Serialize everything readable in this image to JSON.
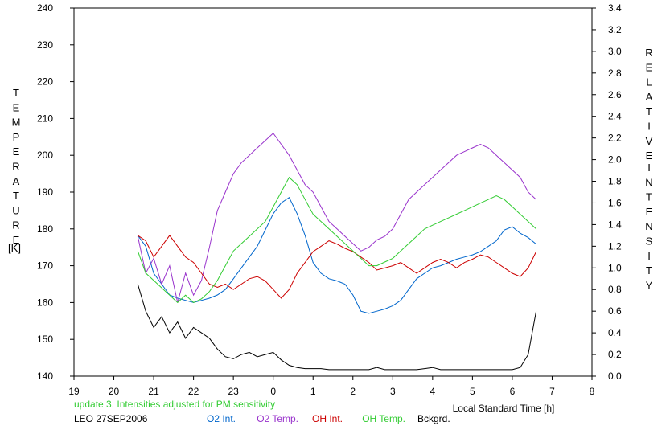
{
  "chart_data": {
    "type": "line",
    "left_axis": {
      "label_letters": [
        "T",
        "E",
        "M",
        "P",
        "E",
        "R",
        "A",
        "T",
        "U",
        "R",
        "E"
      ],
      "unit": "[K]",
      "range": [
        140,
        240
      ],
      "ticks": [
        "140",
        "150",
        "160",
        "170",
        "180",
        "190",
        "200",
        "210",
        "220",
        "230",
        "240"
      ]
    },
    "right_axis": {
      "label_word1": [
        "R",
        "E",
        "L",
        "A",
        "T",
        "I",
        "V",
        "E"
      ],
      "label_word2": [
        "I",
        "N",
        "T",
        "E",
        "N",
        "S",
        "I",
        "T",
        "Y"
      ],
      "range": [
        0.0,
        3.4
      ],
      "ticks": [
        "0.0",
        "0.2",
        "0.4",
        "0.6",
        "0.8",
        "1.0",
        "1.2",
        "1.4",
        "1.6",
        "1.8",
        "2.0",
        "2.2",
        "2.4",
        "2.6",
        "2.8",
        "3.0",
        "3.2",
        "3.4"
      ]
    },
    "x_axis": {
      "label": "Local Standard Time [h]",
      "range": [
        19,
        32
      ],
      "ticks": [
        "19",
        "20",
        "21",
        "22",
        "23",
        "0",
        "1",
        "2",
        "3",
        "4",
        "5",
        "6",
        "7",
        "8"
      ]
    },
    "grid": false,
    "note": "update 3. Intensities adjusted for PM sensitivity",
    "station": "LEO 27SEP2006",
    "series": [
      {
        "name": "O2 Int.",
        "axis": "right",
        "color": "#0066cc",
        "x": [
          20.6,
          20.8,
          21.0,
          21.2,
          21.4,
          21.6,
          21.8,
          22.0,
          22.2,
          22.4,
          22.6,
          22.8,
          23.0,
          23.2,
          23.4,
          23.6,
          23.8,
          24.0,
          24.2,
          24.4,
          24.6,
          24.8,
          25.0,
          25.2,
          25.4,
          25.6,
          25.8,
          26.0,
          26.2,
          26.4,
          26.6,
          26.8,
          27.0,
          27.2,
          27.4,
          27.6,
          27.8,
          28.0,
          28.2,
          28.4,
          28.6,
          28.8,
          29.0,
          29.2,
          29.4,
          29.6,
          29.8,
          30.0,
          30.2,
          30.4,
          30.6
        ],
        "values": [
          1.3,
          1.2,
          0.95,
          0.85,
          0.75,
          0.72,
          0.7,
          0.68,
          0.7,
          0.72,
          0.75,
          0.8,
          0.9,
          1.0,
          1.1,
          1.2,
          1.35,
          1.5,
          1.6,
          1.65,
          1.5,
          1.3,
          1.05,
          0.95,
          0.9,
          0.88,
          0.85,
          0.75,
          0.6,
          0.58,
          0.6,
          0.62,
          0.65,
          0.7,
          0.8,
          0.9,
          0.95,
          1.0,
          1.02,
          1.05,
          1.08,
          1.1,
          1.12,
          1.15,
          1.2,
          1.25,
          1.35,
          1.38,
          1.32,
          1.28,
          1.22
        ]
      },
      {
        "name": "O2 Temp.",
        "axis": "left",
        "color": "#9933cc",
        "x": [
          20.6,
          20.8,
          21.0,
          21.2,
          21.4,
          21.6,
          21.8,
          22.0,
          22.2,
          22.4,
          22.6,
          22.8,
          23.0,
          23.2,
          23.4,
          23.6,
          23.8,
          24.0,
          24.2,
          24.4,
          24.6,
          24.8,
          25.0,
          25.2,
          25.4,
          25.6,
          25.8,
          26.0,
          26.2,
          26.4,
          26.6,
          26.8,
          27.0,
          27.2,
          27.4,
          27.6,
          27.8,
          28.0,
          28.2,
          28.4,
          28.6,
          28.8,
          29.0,
          29.2,
          29.4,
          29.6,
          29.8,
          30.0,
          30.2,
          30.4,
          30.6
        ],
        "values": [
          178,
          168,
          172,
          165,
          170,
          160,
          168,
          162,
          166,
          175,
          185,
          190,
          195,
          198,
          200,
          202,
          204,
          206,
          203,
          200,
          196,
          192,
          190,
          186,
          182,
          180,
          178,
          176,
          174,
          175,
          177,
          178,
          180,
          184,
          188,
          190,
          192,
          194,
          196,
          198,
          200,
          201,
          202,
          203,
          202,
          200,
          198,
          196,
          194,
          190,
          188
        ]
      },
      {
        "name": "OH Int.",
        "axis": "right",
        "color": "#cc0000",
        "x": [
          20.6,
          20.8,
          21.0,
          21.2,
          21.4,
          21.6,
          21.8,
          22.0,
          22.2,
          22.4,
          22.6,
          22.8,
          23.0,
          23.2,
          23.4,
          23.6,
          23.8,
          24.0,
          24.2,
          24.4,
          24.6,
          24.8,
          25.0,
          25.2,
          25.4,
          25.6,
          25.8,
          26.0,
          26.2,
          26.4,
          26.6,
          26.8,
          27.0,
          27.2,
          27.4,
          27.6,
          27.8,
          28.0,
          28.2,
          28.4,
          28.6,
          28.8,
          29.0,
          29.2,
          29.4,
          29.6,
          29.8,
          30.0,
          30.2,
          30.4,
          30.6
        ],
        "values": [
          1.3,
          1.25,
          1.1,
          1.2,
          1.3,
          1.2,
          1.1,
          1.05,
          0.95,
          0.85,
          0.82,
          0.85,
          0.8,
          0.85,
          0.9,
          0.92,
          0.88,
          0.8,
          0.72,
          0.8,
          0.95,
          1.05,
          1.15,
          1.2,
          1.25,
          1.22,
          1.18,
          1.15,
          1.1,
          1.05,
          0.98,
          1.0,
          1.02,
          1.05,
          1.0,
          0.95,
          1.0,
          1.05,
          1.08,
          1.05,
          1.0,
          1.05,
          1.08,
          1.12,
          1.1,
          1.05,
          1.0,
          0.95,
          0.92,
          1.0,
          1.15
        ]
      },
      {
        "name": "OH Temp.",
        "axis": "left",
        "color": "#33cc33",
        "x": [
          20.6,
          20.8,
          21.0,
          21.2,
          21.4,
          21.6,
          21.8,
          22.0,
          22.2,
          22.4,
          22.6,
          22.8,
          23.0,
          23.2,
          23.4,
          23.6,
          23.8,
          24.0,
          24.2,
          24.4,
          24.6,
          24.8,
          25.0,
          25.2,
          25.4,
          25.6,
          25.8,
          26.0,
          26.2,
          26.4,
          26.6,
          26.8,
          27.0,
          27.2,
          27.4,
          27.6,
          27.8,
          28.0,
          28.2,
          28.4,
          28.6,
          28.8,
          29.0,
          29.2,
          29.4,
          29.6,
          29.8,
          30.0,
          30.2,
          30.4,
          30.6
        ],
        "values": [
          174,
          168,
          166,
          164,
          162,
          160,
          162,
          160,
          161,
          163,
          166,
          170,
          174,
          176,
          178,
          180,
          182,
          186,
          190,
          194,
          192,
          188,
          184,
          182,
          180,
          178,
          176,
          174,
          172,
          170,
          170,
          171,
          172,
          174,
          176,
          178,
          180,
          181,
          182,
          183,
          184,
          185,
          186,
          187,
          188,
          189,
          188,
          186,
          184,
          182,
          180
        ]
      },
      {
        "name": "Bckgrd.",
        "axis": "right",
        "color": "#000000",
        "x": [
          20.6,
          20.8,
          21.0,
          21.2,
          21.4,
          21.6,
          21.8,
          22.0,
          22.2,
          22.4,
          22.6,
          22.8,
          23.0,
          23.2,
          23.4,
          23.6,
          23.8,
          24.0,
          24.2,
          24.4,
          24.6,
          24.8,
          25.0,
          25.2,
          25.4,
          25.6,
          25.8,
          26.0,
          26.2,
          26.4,
          26.6,
          26.8,
          27.0,
          27.2,
          27.4,
          27.6,
          27.8,
          28.0,
          28.2,
          28.4,
          28.6,
          28.8,
          29.0,
          29.2,
          29.4,
          29.6,
          29.8,
          30.0,
          30.2,
          30.4,
          30.6
        ],
        "values": [
          0.85,
          0.6,
          0.45,
          0.55,
          0.4,
          0.5,
          0.35,
          0.45,
          0.4,
          0.35,
          0.25,
          0.18,
          0.16,
          0.2,
          0.22,
          0.18,
          0.2,
          0.22,
          0.15,
          0.1,
          0.08,
          0.07,
          0.07,
          0.07,
          0.06,
          0.06,
          0.06,
          0.06,
          0.06,
          0.06,
          0.08,
          0.06,
          0.06,
          0.06,
          0.06,
          0.06,
          0.07,
          0.08,
          0.06,
          0.06,
          0.06,
          0.06,
          0.06,
          0.06,
          0.06,
          0.06,
          0.06,
          0.06,
          0.08,
          0.2,
          0.6
        ]
      }
    ]
  }
}
